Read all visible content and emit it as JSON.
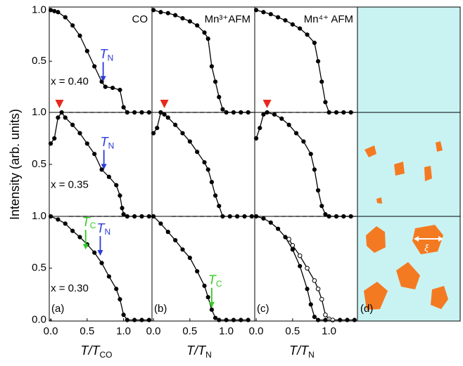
{
  "chart_data": [
    {
      "type": "line",
      "title": "CO",
      "xlim": [
        -0.02,
        1.39
      ],
      "ylim": [
        0,
        1.03
      ],
      "yticks": [
        {
          "value": 0.5,
          "label": "0.5"
        },
        {
          "value": 1,
          "label": "1.0"
        }
      ],
      "series": [
        {
          "color": "#000000",
          "marker": "filled",
          "x": [
            0,
            0.05,
            0.1,
            0.2,
            0.3,
            0.4,
            0.5,
            0.6,
            0.7,
            0.75,
            0.85,
            0.95,
            1.0,
            1.05,
            1.15,
            1.25,
            1.35
          ],
          "values": [
            1.0,
            0.99,
            0.98,
            0.93,
            0.85,
            0.75,
            0.6,
            0.45,
            0.3,
            0.25,
            0.24,
            0.22,
            0.05,
            0,
            0,
            0,
            0
          ]
        }
      ],
      "annotations": [
        {
          "text": "T",
          "sub": "N",
          "color": "#2a3bd6",
          "x": 0.72,
          "y": 0.3
        },
        {
          "text": "x = 0.40",
          "x": 0.0,
          "y": 0.3
        }
      ]
    },
    {
      "type": "line",
      "title": "Mn³⁺AFM",
      "xlim": [
        -0.02,
        1.39
      ],
      "ylim": [
        0,
        1.03
      ],
      "series": [
        {
          "color": "#000000",
          "marker": "filled",
          "x": [
            0,
            0.1,
            0.2,
            0.3,
            0.4,
            0.5,
            0.6,
            0.7,
            0.75,
            0.8,
            0.85,
            0.9,
            0.95,
            1.0,
            1.1,
            1.2,
            1.3
          ],
          "values": [
            1.0,
            0.98,
            0.97,
            0.95,
            0.92,
            0.89,
            0.85,
            0.78,
            0.72,
            0.45,
            0.3,
            0.15,
            0.03,
            0,
            0,
            0,
            0
          ]
        }
      ]
    },
    {
      "type": "line",
      "title": "Mn⁴⁺ AFM",
      "xlim": [
        -0.02,
        1.39
      ],
      "ylim": [
        0,
        1.03
      ],
      "series": [
        {
          "color": "#000000",
          "marker": "filled",
          "x": [
            0,
            0.1,
            0.2,
            0.3,
            0.4,
            0.5,
            0.6,
            0.7,
            0.8,
            0.85,
            0.9,
            0.95,
            1.0,
            1.1,
            1.2,
            1.3
          ],
          "values": [
            1.0,
            0.98,
            0.96,
            0.93,
            0.9,
            0.86,
            0.82,
            0.76,
            0.68,
            0.5,
            0.3,
            0.1,
            0,
            0,
            0,
            0
          ]
        }
      ]
    },
    {
      "type": "line",
      "xlim": [
        -0.02,
        1.39
      ],
      "ylim": [
        0,
        1
      ],
      "yticks": [
        {
          "value": 0.5,
          "label": "0.5"
        },
        {
          "value": 1,
          "label": "1.0"
        }
      ],
      "hline": 1,
      "ylabel": "Intensity (arb. units)",
      "series": [
        {
          "color": "#000000",
          "marker": "filled",
          "x": [
            0,
            0.05,
            0.1,
            0.15,
            0.2,
            0.3,
            0.4,
            0.5,
            0.6,
            0.7,
            0.8,
            0.9,
            0.95,
            0.98,
            1.0,
            1.05,
            1.15,
            1.25,
            1.35
          ],
          "values": [
            0.7,
            0.75,
            0.95,
            1.0,
            0.95,
            0.88,
            0.8,
            0.7,
            0.6,
            0.45,
            0.38,
            0.3,
            0.2,
            0.08,
            0.02,
            0,
            0,
            0,
            0
          ]
        }
      ],
      "markers": [
        {
          "x": 0.12,
          "color": "#e8281e"
        }
      ],
      "annotations": [
        {
          "text": "T",
          "sub": "N",
          "color": "#2a3bd6",
          "x": 0.73,
          "y": 0.45
        },
        {
          "text": "x = 0.35",
          "x": 0.0,
          "y": 0.3
        }
      ]
    },
    {
      "type": "line",
      "xlim": [
        -0.02,
        1.39
      ],
      "ylim": [
        0,
        1
      ],
      "hline": 1,
      "series": [
        {
          "color": "#000000",
          "marker": "filled",
          "x": [
            0,
            0.05,
            0.1,
            0.15,
            0.2,
            0.3,
            0.4,
            0.5,
            0.6,
            0.7,
            0.75,
            0.8,
            0.85,
            0.9,
            0.95,
            1.05,
            1.15,
            1.25,
            1.35
          ],
          "values": [
            0.8,
            0.85,
            1.0,
            0.98,
            0.95,
            0.88,
            0.8,
            0.72,
            0.62,
            0.52,
            0.45,
            0.33,
            0.2,
            0.1,
            0,
            0,
            0,
            0,
            0
          ]
        }
      ],
      "markers": [
        {
          "x": 0.15,
          "color": "#e8281e"
        }
      ]
    },
    {
      "type": "line",
      "xlim": [
        -0.02,
        1.39
      ],
      "ylim": [
        0,
        1
      ],
      "hline": 1,
      "series": [
        {
          "color": "#000000",
          "marker": "filled",
          "x": [
            0,
            0.05,
            0.1,
            0.15,
            0.25,
            0.35,
            0.45,
            0.55,
            0.65,
            0.75,
            0.8,
            0.85,
            0.9,
            0.95,
            1.0,
            1.1,
            1.2,
            1.3
          ],
          "values": [
            0.75,
            0.85,
            0.98,
            1.0,
            0.98,
            0.94,
            0.88,
            0.8,
            0.72,
            0.6,
            0.45,
            0.25,
            0.1,
            0.02,
            0,
            0,
            0,
            0
          ]
        }
      ],
      "markers": [
        {
          "x": 0.15,
          "color": "#e8281e"
        }
      ]
    },
    {
      "type": "line",
      "xlim": [
        -0.02,
        1.39
      ],
      "ylim": [
        -0.01,
        1
      ],
      "yticks": [
        {
          "value": 0,
          "label": "0.0"
        },
        {
          "value": 0.5,
          "label": "0.5"
        },
        {
          "value": 1,
          "label": "1.0"
        }
      ],
      "xticks": [
        {
          "value": 0,
          "label": "0.0"
        },
        {
          "value": 0.5,
          "label": "0.5"
        },
        {
          "value": 1,
          "label": "1.0"
        }
      ],
      "hline": 1,
      "xlabel": "T/T",
      "xlabel_sub": "CO",
      "panel_label": "(a)",
      "series": [
        {
          "color": "#000000",
          "marker": "filled",
          "x": [
            0,
            0.1,
            0.2,
            0.3,
            0.4,
            0.5,
            0.6,
            0.7,
            0.8,
            0.9,
            0.95,
            1.0,
            1.05,
            1.15,
            1.25,
            1.35
          ],
          "values": [
            1.0,
            0.97,
            0.93,
            0.86,
            0.8,
            0.73,
            0.65,
            0.55,
            0.42,
            0.3,
            0.2,
            0.05,
            0,
            0,
            0,
            0
          ]
        }
      ],
      "annotations": [
        {
          "text": "T",
          "sub": "C",
          "color": "#33cc22",
          "x": 0.48,
          "y": 0.68
        },
        {
          "text": "T",
          "sub": "N",
          "color": "#2a3bd6",
          "x": 0.68,
          "y": 0.62
        },
        {
          "text": "x = 0.30",
          "x": 0.0,
          "y": 0.3
        }
      ]
    },
    {
      "type": "line",
      "xlim": [
        -0.02,
        1.39
      ],
      "ylim": [
        -0.01,
        1
      ],
      "xticks": [
        {
          "value": 0,
          "label": "0.0"
        },
        {
          "value": 0.5,
          "label": "0.5"
        },
        {
          "value": 1,
          "label": "1.0"
        }
      ],
      "hline": 1,
      "xlabel": "T/T",
      "xlabel_sub": "N",
      "panel_label": "(b)",
      "series": [
        {
          "color": "#000000",
          "marker": "filled",
          "x": [
            0,
            0.1,
            0.2,
            0.3,
            0.4,
            0.5,
            0.6,
            0.7,
            0.75,
            0.8,
            0.85,
            0.9,
            1.0,
            1.1,
            1.2,
            1.3
          ],
          "values": [
            1.0,
            0.93,
            0.85,
            0.77,
            0.68,
            0.6,
            0.47,
            0.33,
            0.22,
            0.1,
            0.02,
            0,
            0,
            0,
            0,
            0
          ]
        }
      ],
      "annotations": [
        {
          "text": "T",
          "sub": "C",
          "color": "#33cc22",
          "x": 0.8,
          "y": 0.12
        }
      ]
    },
    {
      "type": "line",
      "xlim": [
        -0.02,
        1.39
      ],
      "ylim": [
        -0.01,
        1
      ],
      "xticks": [
        {
          "value": 0,
          "label": "0.0"
        },
        {
          "value": 0.5,
          "label": "0.5"
        },
        {
          "value": 1,
          "label": "1.0"
        }
      ],
      "hline": 1,
      "xlabel": "T/T",
      "xlabel_sub": "N",
      "panel_label": "(c)",
      "series": [
        {
          "color": "#000000",
          "marker": "filled",
          "x": [
            0,
            0.1,
            0.2,
            0.3,
            0.4,
            0.5,
            0.6,
            0.7,
            0.75,
            0.8,
            0.85,
            0.95,
            1.05,
            1.15,
            1.25,
            1.35
          ],
          "values": [
            1.0,
            0.98,
            0.94,
            0.88,
            0.8,
            0.68,
            0.52,
            0.3,
            0.15,
            0.03,
            0,
            0,
            0,
            0,
            0,
            0
          ]
        },
        {
          "color": "#000000",
          "marker": "open",
          "x": [
            0.45,
            0.5,
            0.6,
            0.7,
            0.8,
            0.85,
            0.9,
            0.95,
            1.0,
            1.05
          ],
          "values": [
            0.78,
            0.72,
            0.62,
            0.5,
            0.38,
            0.3,
            0.2,
            0.05,
            0.01,
            0
          ]
        }
      ]
    }
  ],
  "panel_d": {
    "label": "(d)",
    "xi": "ξ"
  }
}
